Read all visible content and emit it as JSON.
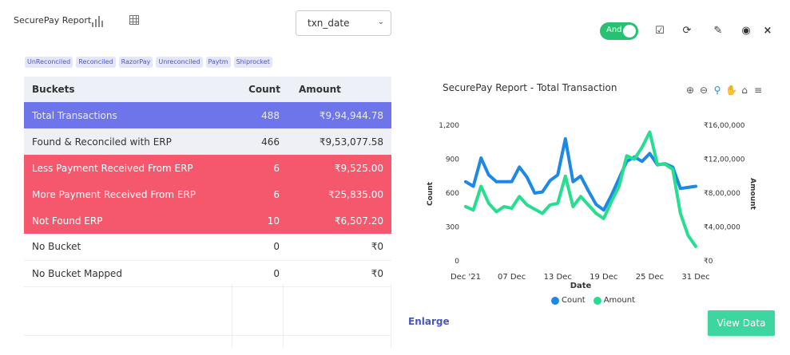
{
  "header": {
    "title": "SecurePay Report",
    "select_value": "txn_date",
    "toggle_label": "And"
  },
  "chips": [
    "UnReconciled",
    "Reconciled",
    "RazorPay",
    "Unreconciled",
    "Paytm",
    "Shiprocket"
  ],
  "table": {
    "headers": [
      "Buckets",
      "Count",
      "Amount"
    ],
    "rows": [
      {
        "bucket": "Total  Transactions",
        "count": "488",
        "amount": "₹9,94,944.78"
      },
      {
        "bucket": "Found & Reconciled with ERP",
        "count": "466",
        "amount": "₹9,53,077.58"
      },
      {
        "bucket": "Less Payment Received From ERP",
        "count": "6",
        "amount": "₹9,525.00"
      },
      {
        "bucket": "More Payment Received From ERP",
        "count": "6",
        "amount": "₹25,835.00"
      },
      {
        "bucket": "Not Found ERP",
        "count": "10",
        "amount": "₹6,507.20"
      },
      {
        "bucket": "No Bucket",
        "count": "0",
        "amount": "₹0"
      },
      {
        "bucket": "No Bucket Mapped",
        "count": "0",
        "amount": "₹0"
      }
    ]
  },
  "enlarge_label": "Enlarge",
  "view_data_label": "View Data",
  "colors": {
    "count_series": "#1e88e5",
    "amount_series": "#26de8f",
    "toggle_green": "#27c271",
    "total_row": "#6e75ea",
    "red_row": "#f5576c",
    "view_btn": "#3dd5a0"
  },
  "icons": [
    "bar-chart-icon",
    "grid-icon",
    "chevron-down-icon",
    "check-square-icon",
    "refresh-icon",
    "pencil-icon",
    "eye-icon",
    "close-icon",
    "zoom-in-icon",
    "zoom-out-icon",
    "magnify-icon",
    "hand-pan-icon",
    "home-icon",
    "menu-icon"
  ],
  "chart_data": {
    "type": "line",
    "title": "SecurePay Report - Total Transaction",
    "xlabel": "Date",
    "ylabel_left": "Count",
    "ylabel_right": "Amount",
    "x_ticks": [
      "Dec '21",
      "07 Dec",
      "13 Dec",
      "19 Dec",
      "25 Dec",
      "31 Dec"
    ],
    "x_range": [
      1,
      31
    ],
    "y_left_ticks": [
      "0",
      "300",
      "600",
      "900",
      "1,200"
    ],
    "y_left_range": [
      0,
      1200
    ],
    "y_right_ticks": [
      "₹0",
      "₹4,00,000",
      "₹8,00,000",
      "₹12,00,000",
      "₹16,00,000"
    ],
    "y_right_range": [
      0,
      1600000
    ],
    "legend": [
      "Count",
      "Amount"
    ],
    "x": [
      1,
      2,
      3,
      4,
      5,
      6,
      7,
      8,
      9,
      10,
      11,
      12,
      13,
      14,
      15,
      16,
      17,
      18,
      19,
      20,
      21,
      22,
      23,
      24,
      25,
      26,
      27,
      28,
      29,
      30,
      31
    ],
    "series": [
      {
        "name": "Count",
        "axis": "left",
        "values": [
          700,
          660,
          910,
          760,
          700,
          700,
          700,
          830,
          740,
          600,
          610,
          710,
          760,
          1080,
          700,
          750,
          620,
          500,
          450,
          580,
          730,
          880,
          920,
          880,
          950,
          850,
          860,
          830,
          640,
          650,
          660
        ]
      },
      {
        "name": "Amount",
        "axis": "right",
        "values": [
          640000,
          600000,
          880000,
          680000,
          580000,
          640000,
          620000,
          760000,
          660000,
          610000,
          560000,
          660000,
          680000,
          1000000,
          640000,
          760000,
          660000,
          560000,
          500000,
          700000,
          880000,
          1240000,
          1200000,
          1340000,
          1520000,
          1140000,
          1140000,
          1080000,
          560000,
          300000,
          170000
        ]
      }
    ],
    "grid": false,
    "legend_position": "bottom"
  }
}
